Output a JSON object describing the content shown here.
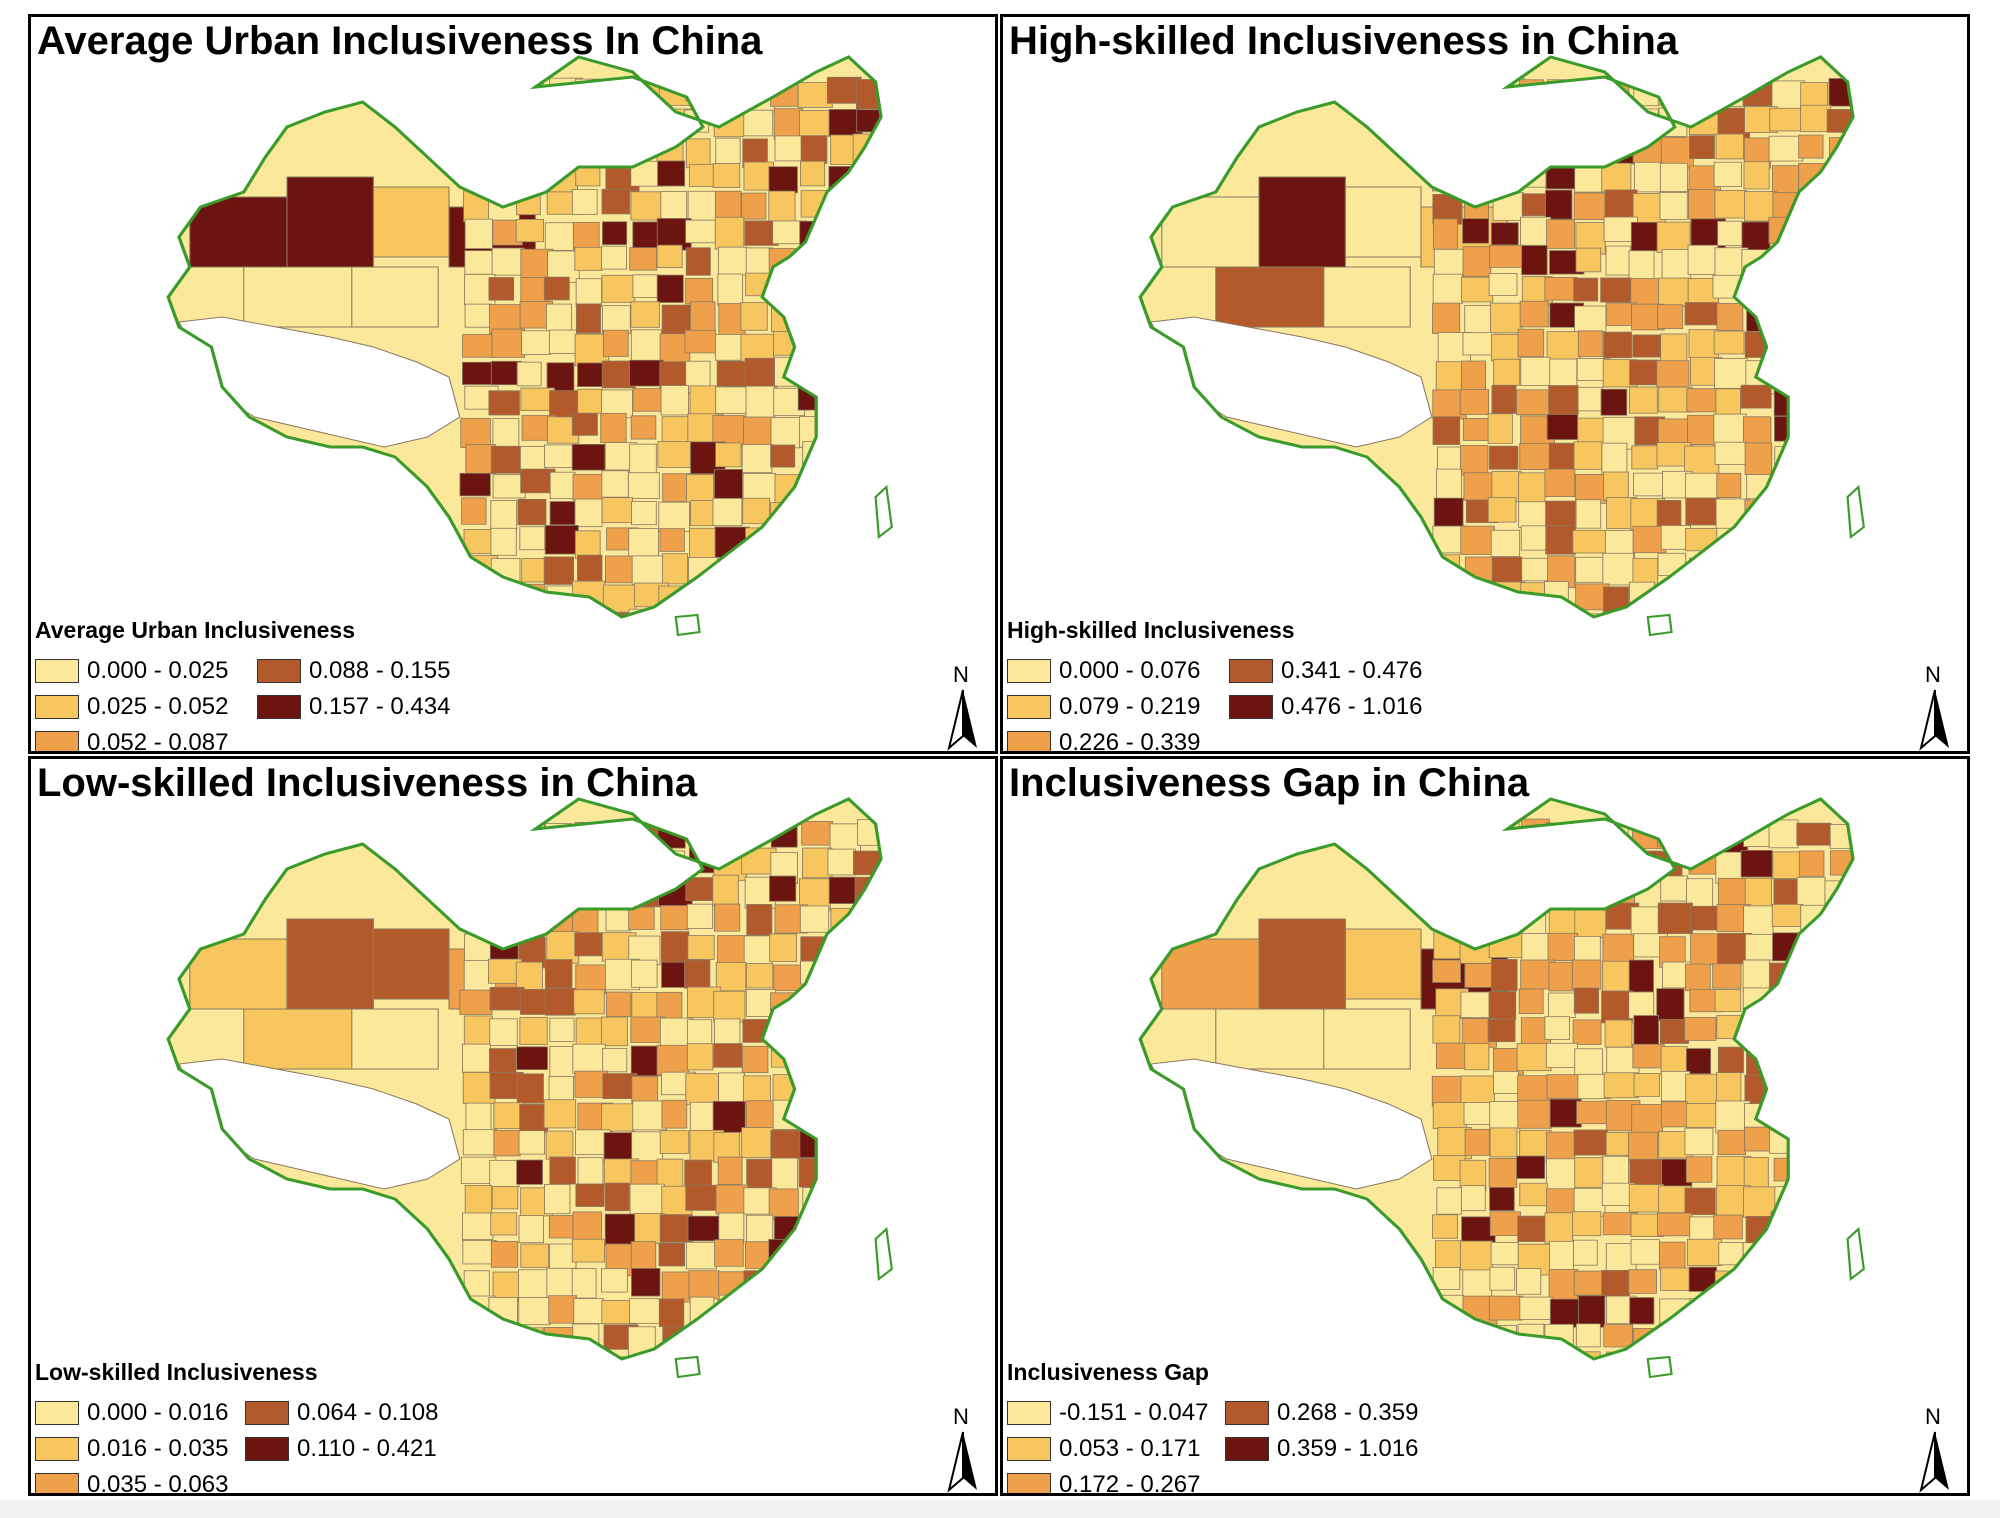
{
  "panels": [
    {
      "title": "Average Urban Inclusiveness In China",
      "legend_title": "Average Urban Inclusiveness",
      "legend": [
        {
          "label": "0.000 - 0.025",
          "color": "#fbe89a"
        },
        {
          "label": "0.025 - 0.052",
          "color": "#f7c65f"
        },
        {
          "label": "0.052 - 0.087",
          "color": "#eea04a"
        },
        {
          "label": "0.088 - 0.155",
          "color": "#b35a2c"
        },
        {
          "label": "0.157 - 0.434",
          "color": "#6b1410"
        }
      ],
      "north_label": "N"
    },
    {
      "title": "High-skilled Inclusiveness in China",
      "legend_title": "High-skilled Inclusiveness",
      "legend": [
        {
          "label": "0.000 - 0.076",
          "color": "#fbe89a"
        },
        {
          "label": "0.079 - 0.219",
          "color": "#f7c65f"
        },
        {
          "label": "0.226 - 0.339",
          "color": "#eea04a"
        },
        {
          "label": "0.341 - 0.476",
          "color": "#b35a2c"
        },
        {
          "label": "0.476 - 1.016",
          "color": "#6b1410"
        }
      ],
      "north_label": "N"
    },
    {
      "title": "Low-skilled Inclusiveness in China",
      "legend_title": "Low-skilled Inclusiveness",
      "legend": [
        {
          "label": "0.000 - 0.016",
          "color": "#fbe89a"
        },
        {
          "label": "0.016 - 0.035",
          "color": "#f7c65f"
        },
        {
          "label": "0.035 - 0.063",
          "color": "#eea04a"
        },
        {
          "label": "0.064 - 0.108",
          "color": "#b35a2c"
        },
        {
          "label": "0.110 - 0.421",
          "color": "#6b1410"
        }
      ],
      "north_label": "N"
    },
    {
      "title": "Inclusiveness Gap in China",
      "legend_title": "Inclusiveness Gap",
      "legend": [
        {
          "label": "-0.151 - 0.047",
          "color": "#fbe89a"
        },
        {
          "label": "0.053 - 0.171",
          "color": "#f7c65f"
        },
        {
          "label": "0.172 - 0.267",
          "color": "#eea04a"
        },
        {
          "label": "0.268 - 0.359",
          "color": "#b35a2c"
        },
        {
          "label": "0.359 - 1.016",
          "color": "#6b1410"
        }
      ],
      "north_label": "N"
    }
  ],
  "colors": {
    "coast_outline": "#3a9a2a",
    "boundary": "#8a7a60",
    "no_data": "#ffffff"
  }
}
